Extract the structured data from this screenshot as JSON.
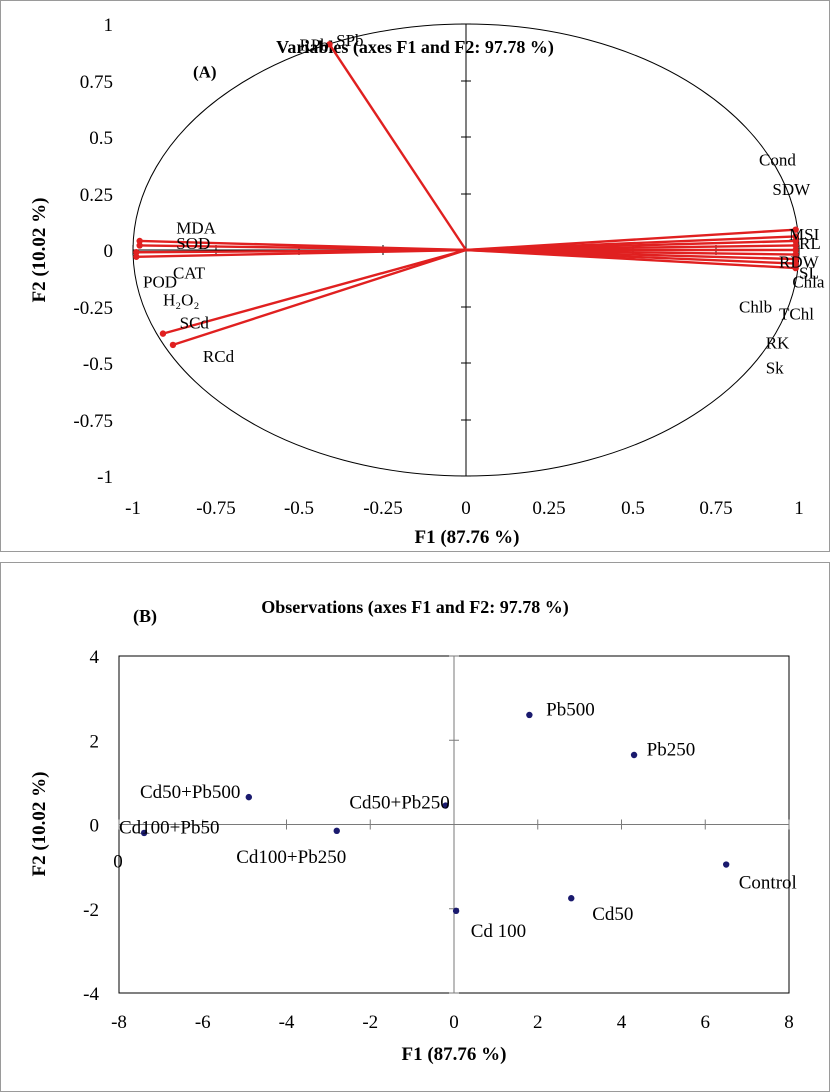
{
  "chart_data": [
    {
      "type": "biplot-variables",
      "title": "Variables (axes F1 and F2: 97.78 %)",
      "panel_label": "(A)",
      "xlabel": "F1 (87.76 %)",
      "ylabel": "F2 (10.02 %)",
      "xlim": [
        -1,
        1
      ],
      "ylim": [
        -1,
        1
      ],
      "x_ticks": [
        "-1",
        "-0.75",
        "-0.5",
        "-0.25",
        "0",
        "0.25",
        "0.5",
        "0.75",
        "1"
      ],
      "y_ticks": [
        "1",
        "0.75",
        "0.5",
        "0.25",
        "0",
        "-0.25",
        "-0.5",
        "-0.75",
        "-1"
      ],
      "correlation_circle": true,
      "vector_color": "#e02020",
      "vectors": [
        {
          "x": -0.41,
          "y": 0.91
        },
        {
          "x": -0.98,
          "y": 0.04
        },
        {
          "x": -0.98,
          "y": 0.02
        },
        {
          "x": -0.99,
          "y": -0.01
        },
        {
          "x": -0.99,
          "y": -0.03
        },
        {
          "x": -0.91,
          "y": -0.37
        },
        {
          "x": -0.88,
          "y": -0.42
        },
        {
          "x": 0.99,
          "y": 0.09
        },
        {
          "x": 0.99,
          "y": 0.06
        },
        {
          "x": 0.99,
          "y": 0.04
        },
        {
          "x": 0.99,
          "y": 0.02
        },
        {
          "x": 0.99,
          "y": 0.0
        },
        {
          "x": 0.99,
          "y": -0.02
        },
        {
          "x": 0.99,
          "y": -0.04
        },
        {
          "x": 0.99,
          "y": -0.06
        },
        {
          "x": 0.99,
          "y": -0.08
        }
      ],
      "labels": [
        {
          "text": "RPb",
          "x": -0.5,
          "y": 0.91
        },
        {
          "text": "SPb",
          "x": -0.39,
          "y": 0.93
        },
        {
          "text": "(A)",
          "x": -0.82,
          "y": 0.79
        },
        {
          "text": "MDA",
          "x": -0.87,
          "y": 0.1
        },
        {
          "text": "SOD",
          "x": -0.87,
          "y": 0.03
        },
        {
          "text": "CAT",
          "x": -0.88,
          "y": -0.1
        },
        {
          "text": "POD",
          "x": -0.97,
          "y": -0.14
        },
        {
          "text": "H₂O₂",
          "x": -0.91,
          "y": -0.22
        },
        {
          "text": "SCd",
          "x": -0.86,
          "y": -0.32
        },
        {
          "text": "RCd",
          "x": -0.79,
          "y": -0.47
        },
        {
          "text": "Cond",
          "x": 0.88,
          "y": 0.4
        },
        {
          "text": "SDW",
          "x": 0.92,
          "y": 0.27
        },
        {
          "text": "MSI",
          "x": 0.97,
          "y": 0.07
        },
        {
          "text": "RL",
          "x": 1.0,
          "y": 0.03
        },
        {
          "text": "RDW",
          "x": 0.94,
          "y": -0.05
        },
        {
          "text": "SL",
          "x": 1.0,
          "y": -0.1
        },
        {
          "text": "Chla",
          "x": 0.98,
          "y": -0.14
        },
        {
          "text": "Chlb",
          "x": 0.82,
          "y": -0.25
        },
        {
          "text": "TChl",
          "x": 0.94,
          "y": -0.28
        },
        {
          "text": "RK",
          "x": 0.9,
          "y": -0.41
        },
        {
          "text": "Sk",
          "x": 0.9,
          "y": -0.52
        }
      ]
    },
    {
      "type": "scatter",
      "title": "Observations (axes F1 and F2: 97.78 %)",
      "panel_label": "(B)",
      "xlabel": "F1 (87.76 %)",
      "ylabel": "F2 (10.02 %)",
      "xlim": [
        -8,
        8
      ],
      "ylim": [
        -4,
        4
      ],
      "x_ticks": [
        "-8",
        "-6",
        "-4",
        "-2",
        "0",
        "2",
        "4",
        "6",
        "8"
      ],
      "y_ticks": [
        "4",
        "2",
        "0",
        "-2",
        "-4"
      ],
      "extra_label": {
        "text": "0",
        "x": -7.9,
        "y": -0.85
      },
      "point_color": "#1a1a6e",
      "points": [
        {
          "name": "Pb500",
          "x": 1.8,
          "y": 2.6,
          "lx": 2.2,
          "ly": 2.75
        },
        {
          "name": "Pb250",
          "x": 4.3,
          "y": 1.65,
          "lx": 4.6,
          "ly": 1.8
        },
        {
          "name": "Cd50+Pb500",
          "x": -4.9,
          "y": 0.65,
          "lx": -7.5,
          "ly": 0.8
        },
        {
          "name": "Cd50+Pb250",
          "x": -0.2,
          "y": 0.45,
          "lx": -2.5,
          "ly": 0.55
        },
        {
          "name": "Cd100+Pb50",
          "x": -7.4,
          "y": -0.2,
          "lx": -8.0,
          "ly": -0.05
        },
        {
          "name": "Cd100+Pb250",
          "x": -2.8,
          "y": -0.15,
          "lx": -5.2,
          "ly": -0.75
        },
        {
          "name": "Control",
          "x": 6.5,
          "y": -0.95,
          "lx": 6.8,
          "ly": -1.35
        },
        {
          "name": "Cd50",
          "x": 2.8,
          "y": -1.75,
          "lx": 3.3,
          "ly": -2.1
        },
        {
          "name": "Cd 100",
          "x": 0.05,
          "y": -2.05,
          "lx": 0.4,
          "ly": -2.5
        }
      ]
    }
  ]
}
